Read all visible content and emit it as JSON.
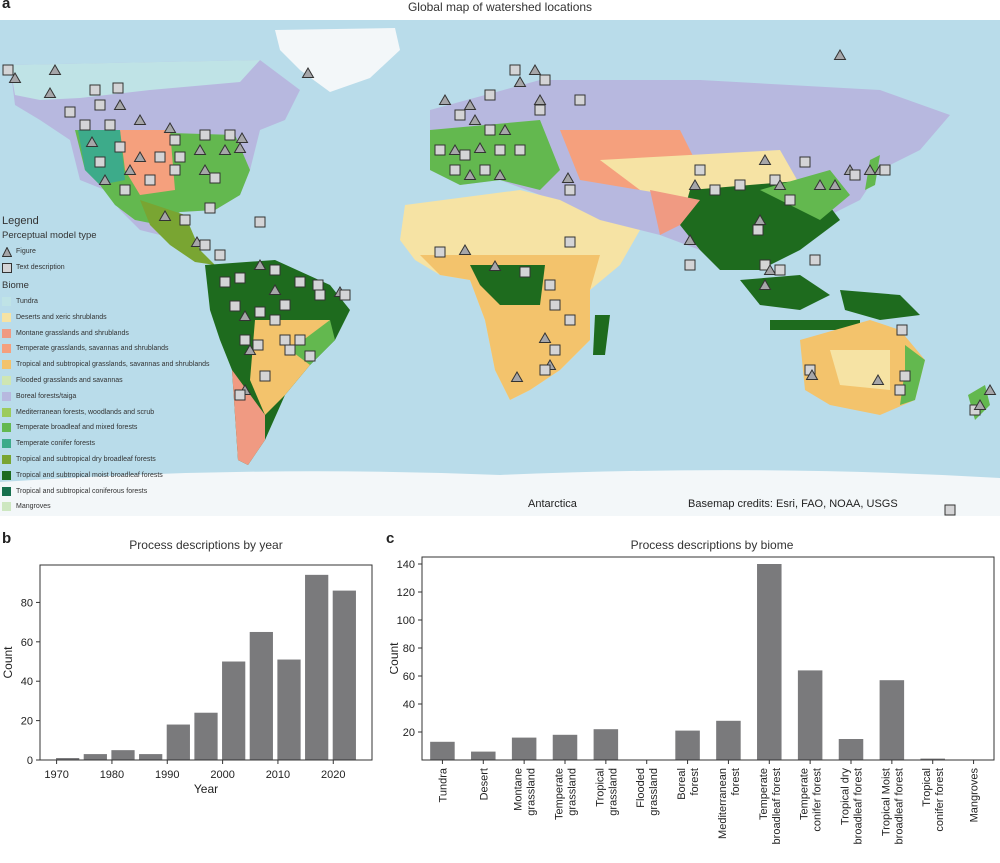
{
  "panels": {
    "a": {
      "letter": "a",
      "title": "Global map of watershed locations"
    },
    "b": {
      "letter": "b",
      "title": "Process descriptions by year"
    },
    "c": {
      "letter": "c",
      "title": "Process descriptions by biome"
    }
  },
  "map": {
    "antarctica_label": "Antarctica",
    "credits": "Basemap credits: Esri, FAO, NOAA, USGS",
    "colors": {
      "ocean": "#b9dcea",
      "ice": "#f3f7f9"
    },
    "legend": {
      "title": "Legend",
      "model_type_title": "Perceptual model type",
      "model_types": [
        {
          "label": "Figure",
          "marker": "triangle"
        },
        {
          "label": "Text description",
          "marker": "square"
        }
      ],
      "biome_title": "Biome",
      "biomes": [
        {
          "label": "Tundra",
          "color": "#bfe3e6"
        },
        {
          "label": "Deserts and xeric shrublands",
          "color": "#f6e3a4"
        },
        {
          "label": "Montane grasslands and shrublands",
          "color": "#f09a82"
        },
        {
          "label": "Temperate grasslands, savannas and shrublands",
          "color": "#f5a07d"
        },
        {
          "label": "Tropical and subtropical grasslands, savannas and shrublands",
          "color": "#f3c36c"
        },
        {
          "label": "Flooded grasslands and savannas",
          "color": "#cfe6b3"
        },
        {
          "label": "Boreal forests/taiga",
          "color": "#b7b8df"
        },
        {
          "label": "Mediterranean forests, woodlands and scrub",
          "color": "#9ccb5c"
        },
        {
          "label": "Temperate broadleaf and mixed forests",
          "color": "#63b84f"
        },
        {
          "label": "Temperate conifer forests",
          "color": "#3dab8a"
        },
        {
          "label": "Tropical and subtropical dry broadleaf forests",
          "color": "#79a532"
        },
        {
          "label": "Tropical and subtropical moist broadleaf forests",
          "color": "#1e6b1e"
        },
        {
          "label": "Tropical and subtropical coniferous forests",
          "color": "#17704e"
        },
        {
          "label": "Mangroves",
          "color": "#cde7c1"
        }
      ]
    }
  },
  "chart_data": [
    {
      "type": "bar",
      "title": "Process descriptions by year",
      "xlabel": "Year",
      "ylabel": "Count",
      "x": [
        1972,
        1977,
        1982,
        1987,
        1992,
        1997,
        2002,
        2007,
        2012,
        2017,
        2022
      ],
      "values": [
        1,
        3,
        5,
        3,
        18,
        24,
        50,
        65,
        51,
        94,
        86
      ],
      "xticks": [
        "1970",
        "1980",
        "1990",
        "2000",
        "2010",
        "2020"
      ],
      "xlim": [
        1967,
        2027
      ],
      "yticks": [
        "0",
        "20",
        "40",
        "60",
        "80"
      ],
      "ylim": [
        0,
        99
      ],
      "bar_color": "#7a7a7c"
    },
    {
      "type": "bar",
      "title": "Process descriptions by biome",
      "xlabel": "",
      "ylabel": "Count",
      "categories": [
        "Tundra",
        "Desert",
        "Montane grassland",
        "Temperate grassland",
        "Tropical grassland",
        "Flooded grassland",
        "Boreal forest",
        "Mediterranean forest",
        "Temperate broadleaf forest",
        "Temperate conifer forest",
        "Tropical dry broadleaf forest",
        "Tropical Moist broadleaf forest",
        "Tropical conifer forest",
        "Mangroves"
      ],
      "category_lines": [
        [
          "Tundra"
        ],
        [
          "Desert"
        ],
        [
          "Montane",
          "grassland"
        ],
        [
          "Temperate",
          "grassland"
        ],
        [
          "Tropical",
          "grassland"
        ],
        [
          "Flooded",
          "grassland"
        ],
        [
          "Boreal",
          "forest"
        ],
        [
          "Mediterranean",
          "forest"
        ],
        [
          "Temperate",
          "broadleaf forest"
        ],
        [
          "Temperate",
          "conifer forest"
        ],
        [
          "Tropical dry",
          "broadleaf forest"
        ],
        [
          "Tropical Moist",
          "broadleaf forest"
        ],
        [
          "Tropical",
          "conifer forest"
        ],
        [
          "Mangroves"
        ]
      ],
      "values": [
        13,
        6,
        16,
        18,
        22,
        0,
        21,
        28,
        140,
        64,
        15,
        57,
        1,
        0
      ],
      "yticks": [
        "20",
        "40",
        "60",
        "80",
        "100",
        "120",
        "140"
      ],
      "ylim": [
        0,
        145
      ],
      "bar_color": "#7a7a7c"
    }
  ]
}
